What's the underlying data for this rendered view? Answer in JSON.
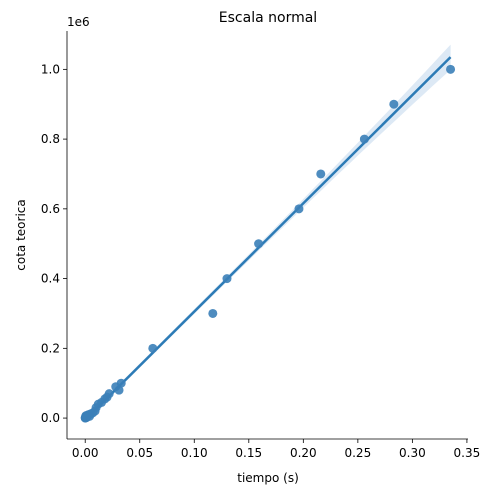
{
  "chart_data": {
    "type": "scatter",
    "title": "Escala normal",
    "xlabel": "tiempo (s)",
    "ylabel": "cota teorica",
    "y_offset_label": "1e6",
    "xlim": [
      -0.0167,
      0.351
    ],
    "ylim": [
      -60000,
      1110000
    ],
    "x_ticks": [
      0.0,
      0.05,
      0.1,
      0.15,
      0.2,
      0.25,
      0.3,
      0.35
    ],
    "x_tick_labels": [
      "0.00",
      "0.05",
      "0.10",
      "0.15",
      "0.20",
      "0.25",
      "0.30",
      "0.35"
    ],
    "y_ticks": [
      0,
      200000,
      400000,
      600000,
      800000,
      1000000
    ],
    "y_tick_labels": [
      "0.0",
      "0.2",
      "0.4",
      "0.6",
      "0.8",
      "1.0"
    ],
    "grid": false,
    "legend": "none",
    "colors": {
      "points": "#3b7fb8",
      "line": "#2c7bb6",
      "band": "#c6dbef"
    },
    "series": [
      {
        "points": [
          [
            0.0,
            0
          ],
          [
            0.0001,
            1000
          ],
          [
            0.0002,
            2000
          ],
          [
            0.0003,
            3000
          ],
          [
            0.0005,
            5000
          ],
          [
            0.0007,
            7000
          ],
          [
            0.001,
            1000
          ],
          [
            0.0012,
            2500
          ],
          [
            0.0015,
            4000
          ],
          [
            0.002,
            6000
          ],
          [
            0.0025,
            8000
          ],
          [
            0.003,
            10000
          ],
          [
            0.004,
            5000
          ],
          [
            0.005,
            12000
          ],
          [
            0.007,
            15000
          ],
          [
            0.009,
            20000
          ],
          [
            0.01,
            30000
          ],
          [
            0.012,
            40000
          ],
          [
            0.015,
            45000
          ],
          [
            0.018,
            55000
          ],
          [
            0.02,
            60000
          ],
          [
            0.022,
            70000
          ],
          [
            0.028,
            90000
          ],
          [
            0.031,
            80000
          ],
          [
            0.033,
            100000
          ],
          [
            0.062,
            200000
          ],
          [
            0.117,
            300000
          ],
          [
            0.13,
            400000
          ],
          [
            0.159,
            500000
          ],
          [
            0.196,
            600000
          ],
          [
            0.216,
            700000
          ],
          [
            0.256,
            800000
          ],
          [
            0.283,
            900000
          ],
          [
            0.335,
            1000000
          ]
        ]
      }
    ],
    "regression": {
      "x": [
        0.0,
        0.335
      ],
      "y": [
        -5000,
        1035000
      ]
    }
  }
}
